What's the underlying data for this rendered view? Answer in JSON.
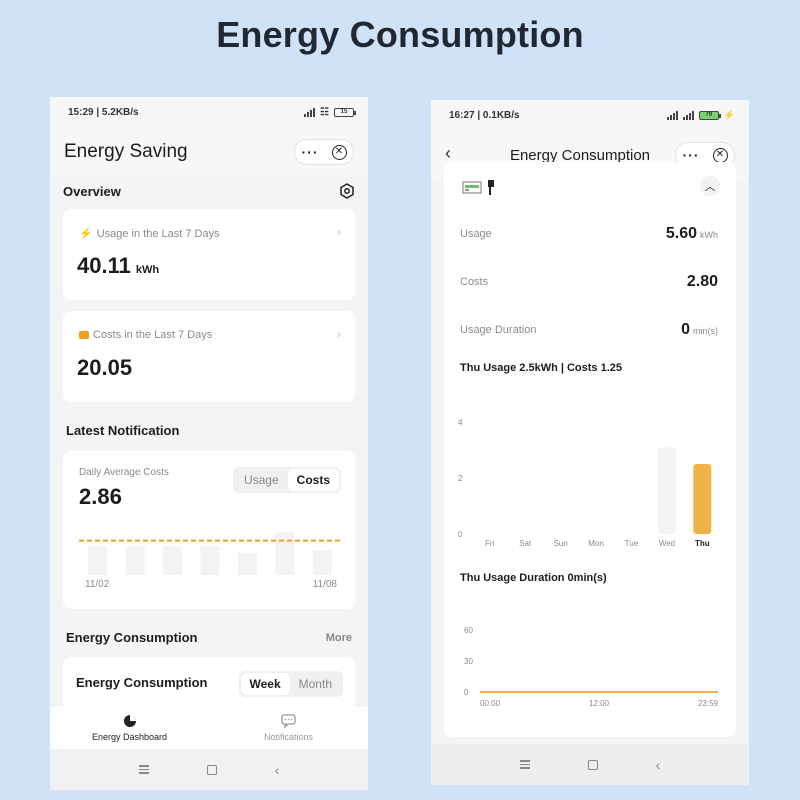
{
  "banner": {
    "title": "Energy Consumption"
  },
  "left": {
    "status": {
      "time_net": "15:29 | 5.2KB/s",
      "battery": "15"
    },
    "header": {
      "title": "Energy Saving"
    },
    "overview": {
      "title": "Overview",
      "usage_card": {
        "label": "Usage in the Last 7 Days",
        "value": "40.11",
        "unit": "kWh"
      },
      "costs_card": {
        "label": "Costs in the Last 7 Days",
        "value": "20.05"
      }
    },
    "latest_notification": {
      "title": "Latest Notification",
      "label": "Daily Average Costs",
      "value": "2.86",
      "tabs": [
        "Usage",
        "Costs"
      ],
      "active_tab": "Costs",
      "x_start": "11/02",
      "x_end": "11/08",
      "bars": [
        0.55,
        0.55,
        0.55,
        0.55,
        0.42,
        0.82,
        0.48
      ],
      "average_level": 0.66
    },
    "energy_section": {
      "title": "Energy Consumption",
      "more": "More",
      "card_title": "Energy Consumption",
      "tabs": [
        "Week",
        "Month"
      ],
      "active_tab": "Week"
    },
    "bottom_nav": [
      {
        "label": "Energy Dashboard",
        "icon": "pie-chart-icon"
      },
      {
        "label": "Notifications",
        "icon": "message-icon"
      }
    ]
  },
  "right": {
    "status": {
      "time_net": "16:27 | 0.1KB/s",
      "battery": "79"
    },
    "header": {
      "title": "Energy Consumption"
    },
    "stats": [
      {
        "label": "Usage",
        "value": "5.60",
        "unit": "kWh"
      },
      {
        "label": "Costs",
        "value": "2.80",
        "unit": ""
      },
      {
        "label": "Usage Duration",
        "value": "0",
        "unit": "min(s)"
      }
    ],
    "usage_chart": {
      "title": "Thu Usage 2.5kWh | Costs 1.25",
      "y_ticks": [
        "4",
        "2",
        "0"
      ],
      "chart_data": {
        "type": "bar",
        "categories": [
          "Fri",
          "Sat",
          "Sun",
          "Mon",
          "Tue",
          "Wed",
          "Thu"
        ],
        "values": [
          0,
          0,
          0,
          0,
          0,
          3.1,
          2.5
        ],
        "highlight": "Thu",
        "highlight_color": "#f0b34a",
        "ylim": [
          0,
          4
        ]
      }
    },
    "duration_chart": {
      "title": "Thu Usage Duration 0min(s)",
      "y_ticks": [
        "60",
        "30",
        "0"
      ],
      "x_ticks": [
        "00:00",
        "12:00",
        "23:59"
      ],
      "chart_data": {
        "type": "line",
        "x": [
          "00:00",
          "12:00",
          "23:59"
        ],
        "values": [
          0,
          0,
          0
        ],
        "ylim": [
          0,
          60
        ],
        "color": "#f0b34a"
      }
    }
  },
  "colors": {
    "accent": "#f0b34a",
    "dashed_line": "#f0a020",
    "background": "#cfe2f7"
  }
}
